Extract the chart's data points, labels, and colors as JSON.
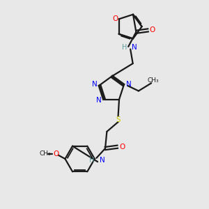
{
  "background_color": "#e8e8e8",
  "bond_color": "#1a1a1a",
  "nitrogen_color": "#0000ff",
  "oxygen_color": "#ff0000",
  "sulfur_color": "#cccc00",
  "nh_color": "#5f9ea0",
  "figsize": [
    3.0,
    3.0
  ],
  "dpi": 100,
  "xlim": [
    0,
    10
  ],
  "ylim": [
    0,
    10
  ]
}
